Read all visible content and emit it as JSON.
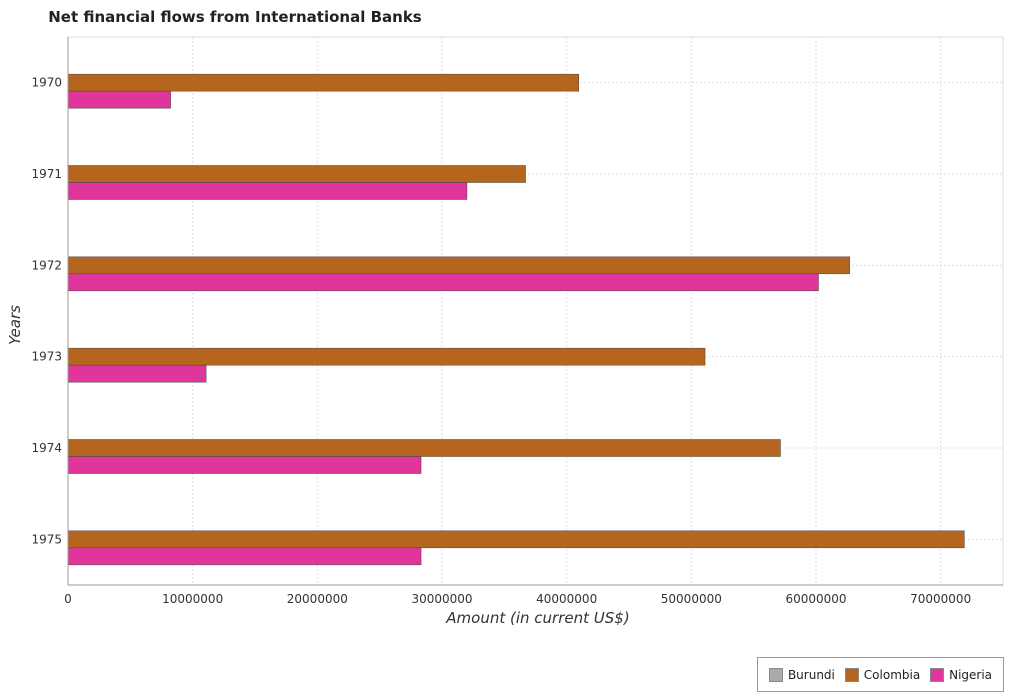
{
  "chart_data": {
    "type": "bar",
    "orientation": "horizontal",
    "title": "Net financial flows from International Banks",
    "xlabel": "Amount (in current US$)",
    "ylabel": "Years",
    "categories": [
      "1970",
      "1971",
      "1972",
      "1973",
      "1974",
      "1975"
    ],
    "series": [
      {
        "name": "Burundi",
        "color": "#aaaaaa",
        "values": [
          0,
          0,
          0,
          0,
          0,
          0
        ]
      },
      {
        "name": "Colombia",
        "color": "#b5651d",
        "values": [
          40970000,
          36700000,
          62700000,
          51100000,
          57150000,
          71900000
        ]
      },
      {
        "name": "Nigeria",
        "color": "#e0359a",
        "values": [
          8230000,
          32000000,
          60200000,
          11080000,
          28320000,
          28320000
        ]
      }
    ],
    "xlim": [
      0,
      75000000
    ],
    "xticks": [
      0,
      10000000,
      20000000,
      30000000,
      40000000,
      50000000,
      60000000,
      70000000
    ],
    "xtick_labels": [
      "0",
      "10000000",
      "20000000",
      "30000000",
      "40000000",
      "50000000",
      "60000000",
      "70000000"
    ],
    "grid": true,
    "legend_position": "bottom-right"
  }
}
